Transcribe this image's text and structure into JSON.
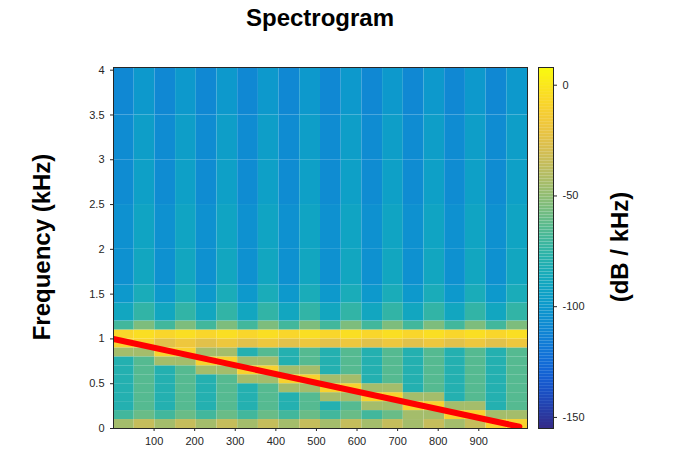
{
  "chart_data": {
    "type": "heatmap",
    "title": "Spectrogram",
    "y_label": "Frequency (kHz)",
    "colorbar_label": "(dB / kHz)",
    "xlim": [
      0,
      1020
    ],
    "xticks": [
      100,
      200,
      300,
      400,
      500,
      600,
      700,
      800,
      900
    ],
    "ylim": [
      0,
      4.03
    ],
    "yticks": [
      0,
      0.5,
      1,
      1.5,
      2,
      2.5,
      3,
      3.5,
      4
    ],
    "x_edges": [
      0,
      51,
      102,
      153,
      204,
      255,
      306,
      357,
      408,
      459,
      510,
      561,
      612,
      663,
      714,
      765,
      816,
      867,
      918,
      969,
      1020
    ],
    "y_edges": [
      0,
      0.1,
      0.2,
      0.3,
      0.4,
      0.5,
      0.6,
      0.7,
      0.8,
      0.9,
      1.0,
      1.1,
      1.2,
      1.4,
      1.6,
      2.0,
      2.5,
      3.0,
      3.5,
      4.03
    ],
    "z": [
      [
        -45,
        -35,
        -45,
        -35,
        -45,
        -35,
        -45,
        -35,
        -45,
        -35,
        -45,
        -35,
        -45,
        -35,
        -45,
        -35,
        -45,
        -35,
        -10,
        -10
      ],
      [
        -70,
        -60,
        -70,
        -60,
        -70,
        -60,
        -70,
        -60,
        -70,
        -60,
        -70,
        -60,
        -70,
        -60,
        -45,
        -45,
        -10,
        -10,
        -45,
        -45
      ],
      [
        -80,
        -65,
        -80,
        -65,
        -80,
        -65,
        -80,
        -65,
        -80,
        -65,
        -80,
        -65,
        -45,
        -45,
        -10,
        -10,
        -45,
        -45,
        -80,
        -65
      ],
      [
        -80,
        -65,
        -80,
        -65,
        -80,
        -65,
        -80,
        -65,
        -80,
        -65,
        -45,
        -45,
        -10,
        -10,
        -45,
        -45,
        -80,
        -65,
        -80,
        -65
      ],
      [
        -80,
        -65,
        -80,
        -65,
        -80,
        -65,
        -80,
        -65,
        -45,
        -45,
        -10,
        -10,
        -45,
        -45,
        -80,
        -65,
        -80,
        -65,
        -80,
        -65
      ],
      [
        -80,
        -65,
        -80,
        -65,
        -80,
        -65,
        -45,
        -45,
        -10,
        -10,
        -45,
        -45,
        -80,
        -65,
        -80,
        -65,
        -80,
        -65,
        -80,
        -65
      ],
      [
        -80,
        -65,
        -80,
        -65,
        -45,
        -45,
        -10,
        -10,
        -45,
        -45,
        -80,
        -65,
        -80,
        -65,
        -80,
        -65,
        -80,
        -65,
        -80,
        -65
      ],
      [
        -80,
        -65,
        -45,
        -45,
        -10,
        -10,
        -45,
        -45,
        -80,
        -65,
        -80,
        -65,
        -80,
        -65,
        -80,
        -65,
        -80,
        -65,
        -80,
        -65
      ],
      [
        -45,
        -45,
        -10,
        -10,
        -45,
        -45,
        -80,
        -65,
        -80,
        -65,
        -80,
        -65,
        -80,
        -65,
        -80,
        -65,
        -80,
        -65,
        -80,
        -65
      ],
      [
        -10,
        -10,
        -25,
        -18,
        -25,
        -18,
        -25,
        -18,
        -25,
        -18,
        -25,
        -18,
        -25,
        -18,
        -25,
        -18,
        -25,
        -18,
        -25,
        -18
      ],
      [
        -8,
        -4,
        -8,
        -4,
        -8,
        -4,
        -8,
        -4,
        -8,
        -4,
        -8,
        -4,
        -8,
        -4,
        -8,
        -4,
        -8,
        -4,
        -8,
        -4
      ],
      [
        -70,
        -55,
        -70,
        -55,
        -70,
        -55,
        -70,
        -55,
        -70,
        -55,
        -70,
        -55,
        -70,
        -55,
        -70,
        -55,
        -70,
        -55,
        -70,
        -55
      ],
      [
        -90,
        -75,
        -90,
        -75,
        -90,
        -75,
        -90,
        -75,
        -90,
        -75,
        -90,
        -75,
        -90,
        -75,
        -90,
        -75,
        -90,
        -75,
        -90,
        -75
      ],
      [
        -100,
        -85,
        -100,
        -85,
        -100,
        -85,
        -100,
        -85,
        -100,
        -85,
        -100,
        -85,
        -100,
        -85,
        -100,
        -85,
        -100,
        -85,
        -100,
        -85
      ],
      [
        -105,
        -90,
        -105,
        -90,
        -105,
        -90,
        -105,
        -90,
        -105,
        -90,
        -105,
        -90,
        -105,
        -90,
        -105,
        -90,
        -105,
        -90,
        -105,
        -90
      ],
      [
        -105,
        -92,
        -105,
        -92,
        -105,
        -92,
        -105,
        -92,
        -105,
        -92,
        -105,
        -92,
        -105,
        -92,
        -105,
        -92,
        -105,
        -92,
        -105,
        -92
      ],
      [
        -108,
        -95,
        -108,
        -95,
        -108,
        -95,
        -108,
        -95,
        -108,
        -95,
        -108,
        -95,
        -108,
        -95,
        -108,
        -95,
        -108,
        -95,
        -108,
        -95
      ],
      [
        -108,
        -96,
        -108,
        -96,
        -108,
        -96,
        -108,
        -96,
        -108,
        -96,
        -108,
        -96,
        -108,
        -96,
        -108,
        -96,
        -108,
        -96,
        -108,
        -96
      ],
      [
        -110,
        -100,
        -110,
        -100,
        -110,
        -100,
        -110,
        -100,
        -110,
        -100,
        -110,
        -100,
        -110,
        -100,
        -110,
        -100,
        -110,
        -100,
        -110,
        -100
      ]
    ],
    "clim": [
      -155,
      8
    ],
    "cticks": [
      0,
      -50,
      -100,
      -150
    ],
    "annotations": [
      {
        "type": "line",
        "x": [
          0,
          1000
        ],
        "y": [
          1.0,
          0.02
        ],
        "color": "#ff0000"
      }
    ]
  }
}
